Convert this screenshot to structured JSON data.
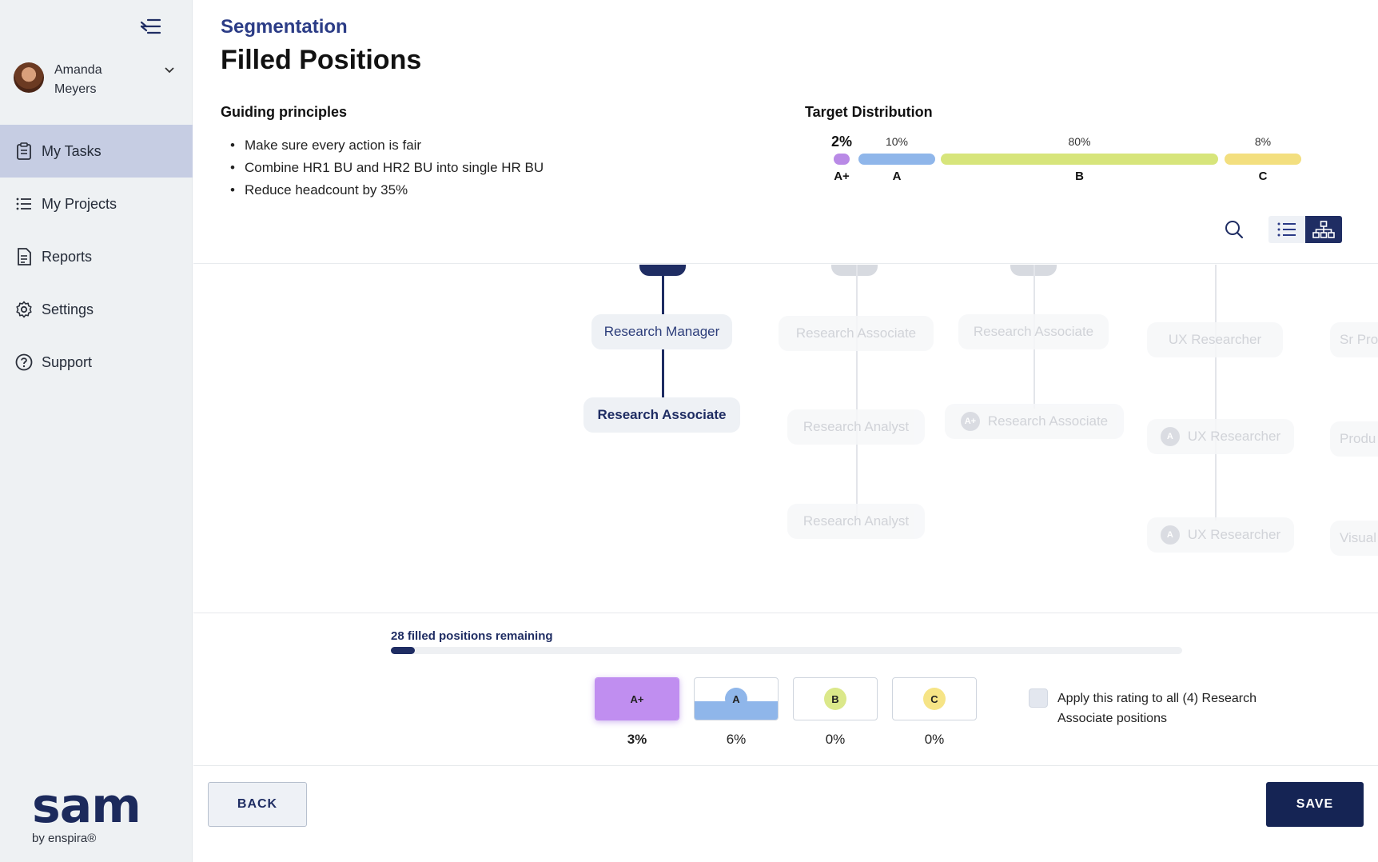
{
  "user": {
    "name": "Amanda Meyers"
  },
  "nav": [
    {
      "label": "My Tasks",
      "icon": "clipboard-icon",
      "active": true
    },
    {
      "label": "My Projects",
      "icon": "list-icon",
      "active": false
    },
    {
      "label": "Reports",
      "icon": "document-icon",
      "active": false
    },
    {
      "label": "Settings",
      "icon": "gear-icon",
      "active": false
    },
    {
      "label": "Support",
      "icon": "help-icon",
      "active": false
    }
  ],
  "brand": {
    "word": "sam",
    "sub": "by enspira®"
  },
  "header": {
    "breadcrumb": "Segmentation",
    "title": "Filled Positions",
    "guiding_title": "Guiding principles",
    "guiding": [
      "Make sure every action is fair",
      "Combine HR1 BU and HR2 BU into single HR BU",
      "Reduce headcount by 35%"
    ],
    "target_title": "Target Distribution",
    "distribution": [
      {
        "label": "A+",
        "pct": "2%",
        "value": 2,
        "color": "#b98ae6"
      },
      {
        "label": "A",
        "pct": "10%",
        "value": 10,
        "color": "#8fb6ea"
      },
      {
        "label": "B",
        "pct": "80%",
        "value": 80,
        "color": "#d7e57b"
      },
      {
        "label": "C",
        "pct": "8%",
        "value": 8,
        "color": "#f3df7f"
      }
    ]
  },
  "org": {
    "nodes": [
      {
        "text": "Research Manager"
      },
      {
        "text": "Research Associate"
      },
      {
        "text": "Research Associate"
      },
      {
        "text": "Research Analyst"
      },
      {
        "text": "Research Analyst"
      },
      {
        "text": "Research Associate"
      },
      {
        "text": "Research Associate",
        "chip": "A+"
      },
      {
        "text": "UX Researcher"
      },
      {
        "text": "UX Researcher",
        "chip": "A"
      },
      {
        "text": "UX Researcher",
        "chip": "A"
      },
      {
        "text": "Sr Pro"
      },
      {
        "text": "Produ"
      },
      {
        "text": "Visual"
      }
    ]
  },
  "panel": {
    "remaining": "28 filled positions remaining",
    "progress": 0.03,
    "ratings": [
      {
        "label": "A+",
        "pct": "3%",
        "selected": true,
        "color": "#c08ef0",
        "fill": 1.0
      },
      {
        "label": "A",
        "pct": "6%",
        "selected": false,
        "color": "#8fb6ea",
        "fill": 0.45
      },
      {
        "label": "B",
        "pct": "0%",
        "selected": false,
        "color": "#dbe88a",
        "fill": 0
      },
      {
        "label": "C",
        "pct": "0%",
        "selected": false,
        "color": "#f6e486",
        "fill": 0
      }
    ],
    "apply_text": "Apply this rating to all (4) Research Associate positions"
  },
  "footer": {
    "back": "BACK",
    "save": "SAVE"
  }
}
